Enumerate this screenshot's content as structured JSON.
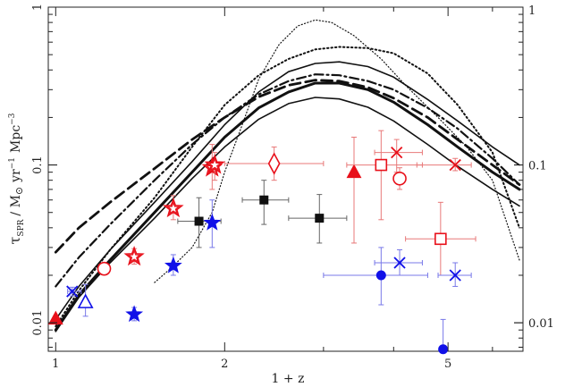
{
  "chart_data": {
    "type": "scatter",
    "title": "",
    "xlabel": "1 + z",
    "ylabel": "τSPR / M⊙ yr⁻¹ Mpc⁻³",
    "ylabel_parts": {
      "tau": "τ",
      "sub": "SPR",
      "unit": "/ M",
      "sun": "⊙",
      "yr": "yr",
      "yr_exp": "−1",
      "mpc": "Mpc",
      "mpc_exp": "−3"
    },
    "x_scale": "log",
    "y_scale": "log",
    "xlim": [
      0.97,
      6.8
    ],
    "ylim": [
      0.0066,
      1.0
    ],
    "x_ticks": [
      {
        "value": 1,
        "label": "1"
      },
      {
        "value": 2,
        "label": "2"
      },
      {
        "value": 5,
        "label": "5"
      }
    ],
    "y_ticks": [
      {
        "value": 0.01,
        "label": "0.01"
      },
      {
        "value": 0.1,
        "label": "0.1"
      },
      {
        "value": 1,
        "label": "1"
      }
    ],
    "y_ticks_right": [
      {
        "value": 0.01,
        "label": "0.01"
      },
      {
        "value": 0.1,
        "label": "0.1"
      },
      {
        "value": 1,
        "label": "1"
      }
    ],
    "grid": false,
    "colors": {
      "red": "#e8101a",
      "blue": "#1010e8",
      "black": "#111111",
      "red_err": "#e87878",
      "blue_err": "#7878e8",
      "black_err": "#666666"
    },
    "curves": [
      {
        "style": "solid-thick",
        "x": [
          1.0,
          1.1,
          1.25,
          1.5,
          1.75,
          2.0,
          2.3,
          2.6,
          2.9,
          3.2,
          3.6,
          4.0,
          4.6,
          5.2,
          6.0,
          6.7
        ],
        "y": [
          0.009,
          0.015,
          0.025,
          0.05,
          0.09,
          0.15,
          0.23,
          0.29,
          0.33,
          0.33,
          0.3,
          0.25,
          0.18,
          0.13,
          0.09,
          0.07
        ]
      },
      {
        "style": "solid-upper",
        "x": [
          1.0,
          1.1,
          1.25,
          1.5,
          1.75,
          2.0,
          2.3,
          2.6,
          2.9,
          3.2,
          3.6,
          4.0,
          4.6,
          5.2,
          6.0,
          6.7
        ],
        "y": [
          0.0105,
          0.017,
          0.029,
          0.058,
          0.105,
          0.18,
          0.29,
          0.39,
          0.44,
          0.45,
          0.42,
          0.36,
          0.26,
          0.19,
          0.13,
          0.1
        ]
      },
      {
        "style": "solid-lower",
        "x": [
          1.0,
          1.1,
          1.25,
          1.5,
          1.75,
          2.0,
          2.3,
          2.6,
          2.9,
          3.2,
          3.6,
          4.0,
          4.6,
          5.2,
          6.0,
          6.7
        ],
        "y": [
          0.0088,
          0.0145,
          0.024,
          0.046,
          0.082,
          0.13,
          0.195,
          0.245,
          0.268,
          0.262,
          0.232,
          0.19,
          0.135,
          0.098,
          0.07,
          0.055
        ]
      },
      {
        "style": "dashed",
        "x": [
          1.0,
          1.1,
          1.25,
          1.5,
          1.75,
          2.0,
          2.3,
          2.6,
          2.9,
          3.2,
          3.6,
          4.0,
          4.6,
          5.2,
          6.0,
          6.7
        ],
        "y": [
          0.028,
          0.04,
          0.058,
          0.095,
          0.145,
          0.2,
          0.27,
          0.32,
          0.345,
          0.34,
          0.31,
          0.265,
          0.2,
          0.145,
          0.1,
          0.075
        ]
      },
      {
        "style": "dash-dot",
        "x": [
          1.0,
          1.1,
          1.25,
          1.5,
          1.75,
          2.0,
          2.3,
          2.6,
          2.9,
          3.2,
          3.6,
          4.0,
          4.6,
          5.2,
          6.0,
          6.7
        ],
        "y": [
          0.017,
          0.026,
          0.042,
          0.08,
          0.135,
          0.2,
          0.28,
          0.34,
          0.375,
          0.37,
          0.34,
          0.3,
          0.23,
          0.17,
          0.11,
          0.075
        ]
      },
      {
        "style": "dotted",
        "x": [
          1.0,
          1.1,
          1.25,
          1.5,
          1.75,
          2.0,
          2.3,
          2.6,
          2.9,
          3.2,
          3.6,
          4.0,
          4.6,
          5.2,
          6.0,
          6.7
        ],
        "y": [
          0.0095,
          0.016,
          0.029,
          0.062,
          0.13,
          0.24,
          0.37,
          0.47,
          0.54,
          0.56,
          0.55,
          0.51,
          0.38,
          0.24,
          0.12,
          0.04
        ]
      },
      {
        "style": "dotted-thin",
        "x": [
          1.5,
          1.6,
          1.75,
          1.9,
          2.0,
          2.15,
          2.3,
          2.5,
          2.7,
          2.9,
          3.1,
          3.4,
          3.8,
          4.2,
          4.8,
          5.4,
          6.0,
          6.7
        ],
        "y": [
          0.018,
          0.022,
          0.03,
          0.05,
          0.09,
          0.18,
          0.35,
          0.58,
          0.76,
          0.83,
          0.8,
          0.66,
          0.47,
          0.32,
          0.2,
          0.13,
          0.08,
          0.025
        ]
      }
    ],
    "points": [
      {
        "x": 1.0,
        "y": 0.0106,
        "marker": "triangle-filled",
        "color": "red",
        "err_y": [
          0.0103,
          0.011
        ]
      },
      {
        "x": 1.07,
        "y": 0.0158,
        "marker": "x",
        "color": "blue",
        "err_x": [
          1.05,
          1.11
        ],
        "err_y": [
          0.0148,
          0.0168
        ]
      },
      {
        "x": 1.13,
        "y": 0.0135,
        "marker": "triangle-open",
        "color": "blue",
        "err_y": [
          0.011,
          0.0175
        ]
      },
      {
        "x": 1.22,
        "y": 0.022,
        "marker": "circle-open",
        "color": "red",
        "err_y": [
          0.0205,
          0.0235
        ]
      },
      {
        "x": 1.38,
        "y": 0.0113,
        "marker": "star-filled",
        "color": "blue",
        "err_y": [
          0.0103,
          0.0125
        ]
      },
      {
        "x": 1.38,
        "y": 0.0262,
        "marker": "star-open",
        "color": "red",
        "err_y": [
          0.0235,
          0.0295
        ]
      },
      {
        "x": 1.62,
        "y": 0.023,
        "marker": "star-filled",
        "color": "blue",
        "err_y": [
          0.02,
          0.027
        ]
      },
      {
        "x": 1.62,
        "y": 0.053,
        "marker": "star-open",
        "color": "red",
        "err_y": [
          0.045,
          0.064
        ]
      },
      {
        "x": 1.8,
        "y": 0.044,
        "marker": "square-filled",
        "color": "black",
        "err_x": [
          1.65,
          1.97
        ],
        "err_y": [
          0.03,
          0.062
        ]
      },
      {
        "x": 1.9,
        "y": 0.043,
        "marker": "star-filled",
        "color": "blue",
        "err_y": [
          0.03,
          0.06
        ]
      },
      {
        "x": 1.9,
        "y": 0.096,
        "marker": "star-open",
        "color": "red",
        "err_y": [
          0.07,
          0.135
        ]
      },
      {
        "x": 1.92,
        "y": 0.1,
        "marker": "star-open",
        "color": "red",
        "err_y": [
          0.08,
          0.12
        ]
      },
      {
        "x": 2.35,
        "y": 0.06,
        "marker": "square-filled",
        "color": "black",
        "err_x": [
          2.15,
          2.6
        ],
        "err_y": [
          0.042,
          0.08
        ]
      },
      {
        "x": 2.45,
        "y": 0.102,
        "marker": "diamond-open",
        "color": "red",
        "err_x": [
          2.0,
          3.0
        ],
        "err_y": [
          0.08,
          0.13
        ]
      },
      {
        "x": 2.95,
        "y": 0.046,
        "marker": "square-filled",
        "color": "black",
        "err_x": [
          2.6,
          3.3
        ],
        "err_y": [
          0.032,
          0.065
        ]
      },
      {
        "x": 3.4,
        "y": 0.09,
        "marker": "triangle-filled",
        "color": "red",
        "err_y": [
          0.032,
          0.15
        ]
      },
      {
        "x": 3.8,
        "y": 0.1,
        "marker": "square-open",
        "color": "red",
        "err_x": [
          3.3,
          4.5
        ],
        "err_y": [
          0.045,
          0.165
        ]
      },
      {
        "x": 3.8,
        "y": 0.02,
        "marker": "circle-filled",
        "color": "blue",
        "err_x": [
          3.0,
          4.6
        ],
        "err_y": [
          0.013,
          0.03
        ]
      },
      {
        "x": 4.05,
        "y": 0.12,
        "marker": "x",
        "color": "red",
        "err_x": [
          3.7,
          4.5
        ],
        "err_y": [
          0.09,
          0.145
        ]
      },
      {
        "x": 4.1,
        "y": 0.082,
        "marker": "circle-open",
        "color": "red",
        "err_y": [
          0.07,
          0.096
        ]
      },
      {
        "x": 4.1,
        "y": 0.024,
        "marker": "x",
        "color": "blue",
        "err_x": [
          3.7,
          4.5
        ],
        "err_y": [
          0.02,
          0.029
        ]
      },
      {
        "x": 4.85,
        "y": 0.034,
        "marker": "square-open",
        "color": "red",
        "err_x": [
          4.2,
          5.6
        ],
        "err_y": [
          0.02,
          0.058
        ]
      },
      {
        "x": 5.15,
        "y": 0.1,
        "marker": "x",
        "color": "red",
        "err_x": [
          4.4,
          5.5
        ],
        "err_y": [
          0.092,
          0.11
        ]
      },
      {
        "x": 5.15,
        "y": 0.02,
        "marker": "x",
        "color": "blue",
        "err_x": [
          4.8,
          5.5
        ],
        "err_y": [
          0.017,
          0.024
        ]
      },
      {
        "x": 4.9,
        "y": 0.0068,
        "marker": "circle-filled",
        "color": "blue",
        "err_y": [
          0.005,
          0.0105
        ]
      }
    ]
  }
}
